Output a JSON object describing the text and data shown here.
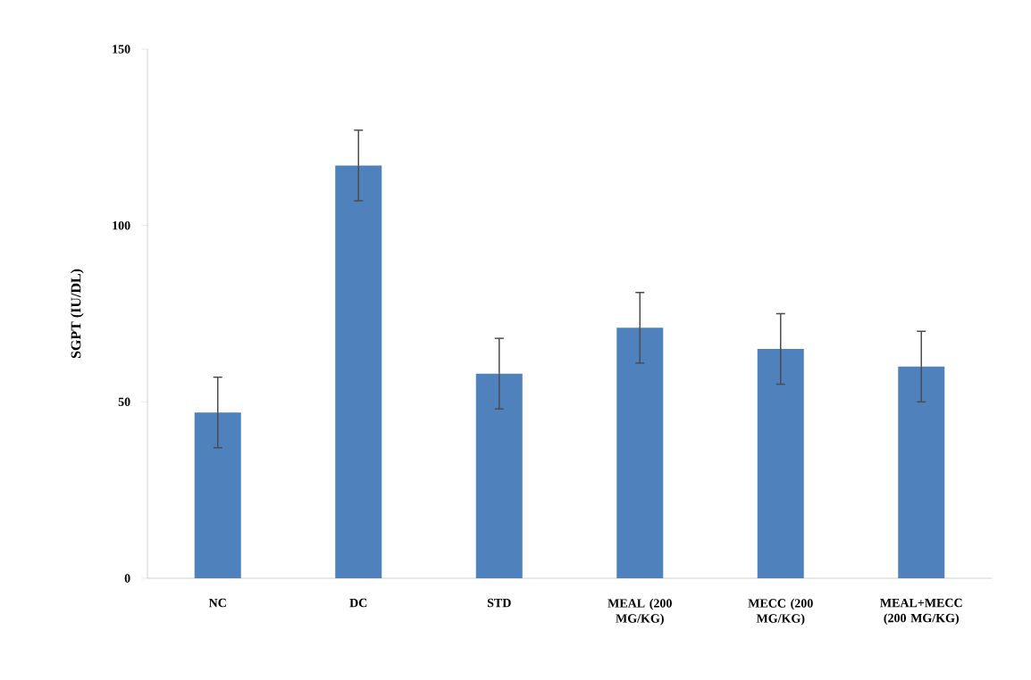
{
  "chart_data": {
    "type": "bar",
    "ylabel": "SGPT (IU/DL)",
    "categories": [
      "NC",
      "DC",
      "STD",
      "MEAL (200 MG/KG)",
      "MECC (200 MG/KG)",
      "MEAL+MECC (200 MG/KG)"
    ],
    "values": [
      47,
      117,
      58,
      71,
      65,
      60
    ],
    "errors": [
      10,
      10,
      10,
      10,
      10,
      10
    ],
    "color": "#4f81bd",
    "ylim": [
      0,
      150
    ],
    "yticks": [
      0,
      50,
      100,
      150
    ]
  }
}
